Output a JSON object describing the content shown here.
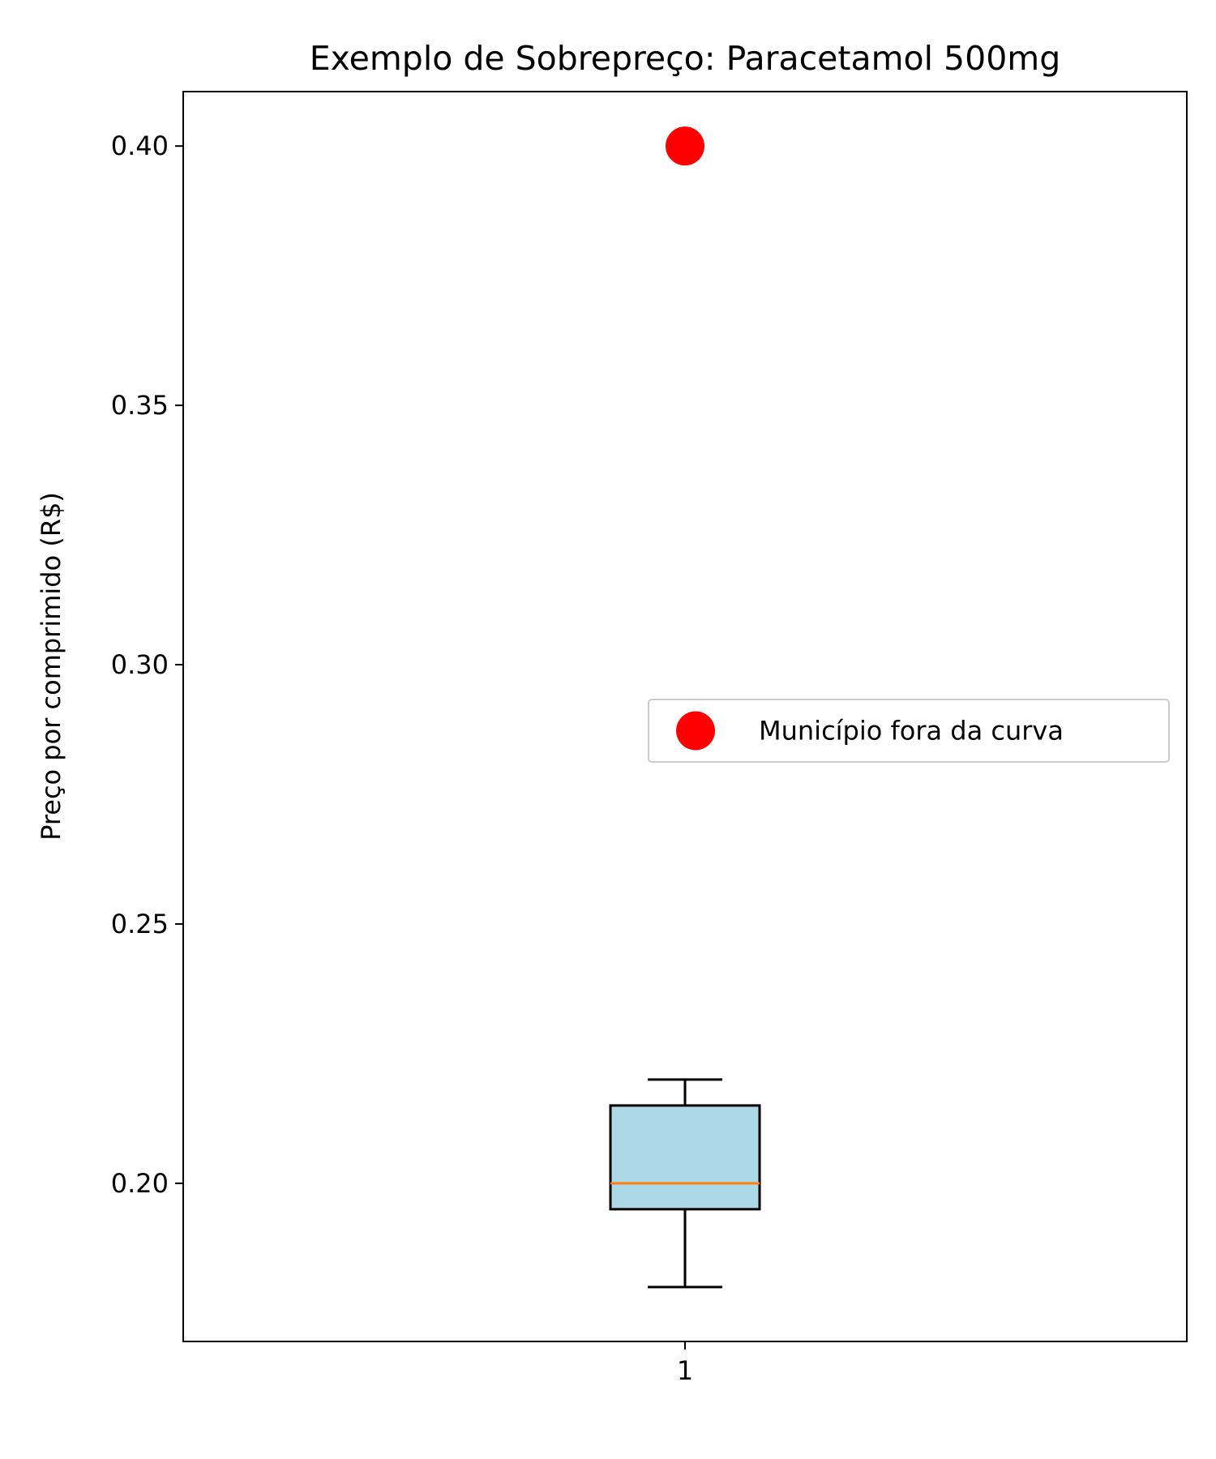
{
  "chart_data": {
    "type": "box",
    "title": "Exemplo de Sobrepreço: Paracetamol 500mg",
    "xlabel": "",
    "ylabel": "Preço por comprimido (R$)",
    "ylim": [
      0.1695,
      0.4105
    ],
    "xlim": [
      0.5,
      1.5
    ],
    "x_ticks": [
      1
    ],
    "x_tick_labels": [
      "1"
    ],
    "y_ticks": [
      0.2,
      0.25,
      0.3,
      0.35,
      0.4
    ],
    "y_tick_labels": [
      "0.20",
      "0.25",
      "0.30",
      "0.35",
      "0.40"
    ],
    "grid": false,
    "legend_position": "center-right",
    "box": {
      "position": 1,
      "whisker_low": 0.18,
      "q1": 0.195,
      "median": 0.2,
      "q3": 0.215,
      "whisker_high": 0.22,
      "fill_color": "#add8e6",
      "median_color": "#ff7f0e"
    },
    "series": [
      {
        "name": "Município fora da curva",
        "type": "scatter",
        "x": [
          1
        ],
        "y": [
          0.4
        ],
        "color": "#ff0000"
      }
    ]
  }
}
